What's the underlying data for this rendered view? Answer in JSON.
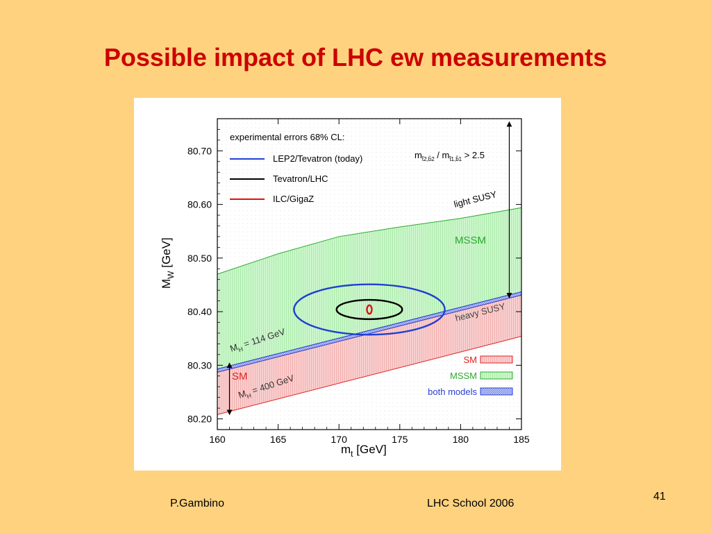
{
  "slide": {
    "title": "Possible impact of LHC ew measurements",
    "footer_author": "P.Gambino",
    "footer_event": "LHC School 2006",
    "page_number": "41"
  },
  "colors": {
    "background": "#ffd27f",
    "title": "#cc0000",
    "mssm": "#2eaa2e",
    "mssm_fill": "#9af09a",
    "sm": "#e02020",
    "sm_fill": "#f4a0a0",
    "both": "#2a3fd0",
    "lep2_tevatron": "#1f3fd0",
    "tevatron_lhc": "#000000",
    "ilc_gigaz": "#e01010"
  },
  "chart_data": {
    "type": "area",
    "xlabel_main": "m",
    "xlabel_sub": "t",
    "xlabel_unit": "[GeV]",
    "ylabel_main": "M",
    "ylabel_sub": "W",
    "ylabel_unit": "[GeV]",
    "xlim": [
      160,
      185
    ],
    "ylim": [
      80.18,
      80.76
    ],
    "x_ticks": [
      160,
      165,
      170,
      175,
      180,
      185
    ],
    "y_ticks": [
      80.2,
      80.3,
      80.4,
      80.5,
      80.6,
      80.7
    ],
    "x_tick_labels": [
      "160",
      "165",
      "170",
      "175",
      "180",
      "185"
    ],
    "y_tick_labels": [
      "80.20",
      "80.30",
      "80.40",
      "80.50",
      "80.60",
      "80.70"
    ],
    "grid": false,
    "legend_title": "experimental errors 68% CL:",
    "legend_placement": "top-left",
    "legend": [
      {
        "name": "LEP2/Tevatron (today)",
        "color": "#1f3fd0"
      },
      {
        "name": "Tevatron/LHC",
        "color": "#000000"
      },
      {
        "name": "ILC/GigaZ",
        "color": "#e01010"
      }
    ],
    "region_legend_placement": "bottom-right",
    "region_legend": [
      {
        "name": "SM",
        "color": "#e02020"
      },
      {
        "name": "MSSM",
        "color": "#2eaa2e"
      },
      {
        "name": "both models",
        "color": "#2a3fd0"
      }
    ],
    "bands": [
      {
        "name": "MSSM",
        "upper": {
          "x": [
            160,
            165,
            170,
            175,
            180,
            185
          ],
          "y": [
            80.47,
            80.508,
            80.54,
            80.558,
            80.574,
            80.594
          ]
        },
        "lower": {
          "x": [
            160,
            185
          ],
          "y": [
            80.293,
            80.437
          ]
        }
      },
      {
        "name": "SM",
        "upper": {
          "x": [
            160,
            185
          ],
          "y": [
            80.287,
            80.431
          ]
        },
        "lower": {
          "x": [
            160,
            185
          ],
          "y": [
            80.208,
            80.354
          ]
        }
      },
      {
        "name": "both models",
        "upper": {
          "x": [
            160,
            185
          ],
          "y": [
            80.293,
            80.437
          ]
        },
        "lower": {
          "x": [
            160,
            185
          ],
          "y": [
            80.287,
            80.431
          ]
        }
      }
    ],
    "ellipses": [
      {
        "name": "LEP2/Tevatron (today)",
        "center": [
          172.5,
          80.404
        ],
        "half_width": [
          6.2,
          0.047
        ]
      },
      {
        "name": "Tevatron/LHC",
        "center": [
          172.5,
          80.404
        ],
        "half_width": [
          2.7,
          0.018
        ]
      },
      {
        "name": "ILC/GigaZ",
        "center": [
          172.5,
          80.404
        ],
        "half_width": [
          0.2,
          0.008
        ]
      }
    ],
    "annotations": {
      "ratio_text": "m",
      "ratio_sub1": "t̃2,b̃2",
      "ratio_mid": " / m",
      "ratio_sub2": "t̃1,b̃1",
      "ratio_tail": " > 2.5",
      "light_susy": "light SUSY",
      "heavy_susy": "heavy SUSY",
      "mssm_label": "MSSM",
      "sm_label": "SM",
      "mh114_main": "M",
      "mh114_sub": "H",
      "mh114_tail": " = 114 GeV",
      "mh400_main": "M",
      "mh400_sub": "H",
      "mh400_tail": " = 400 GeV"
    },
    "arrows": [
      {
        "name": "mssm-range-arrow",
        "x": 184,
        "y_from": 80.75,
        "y_to": 80.43
      },
      {
        "name": "sm-range-arrow",
        "x": 161,
        "y_from": 80.3,
        "y_to": 80.212
      }
    ]
  }
}
